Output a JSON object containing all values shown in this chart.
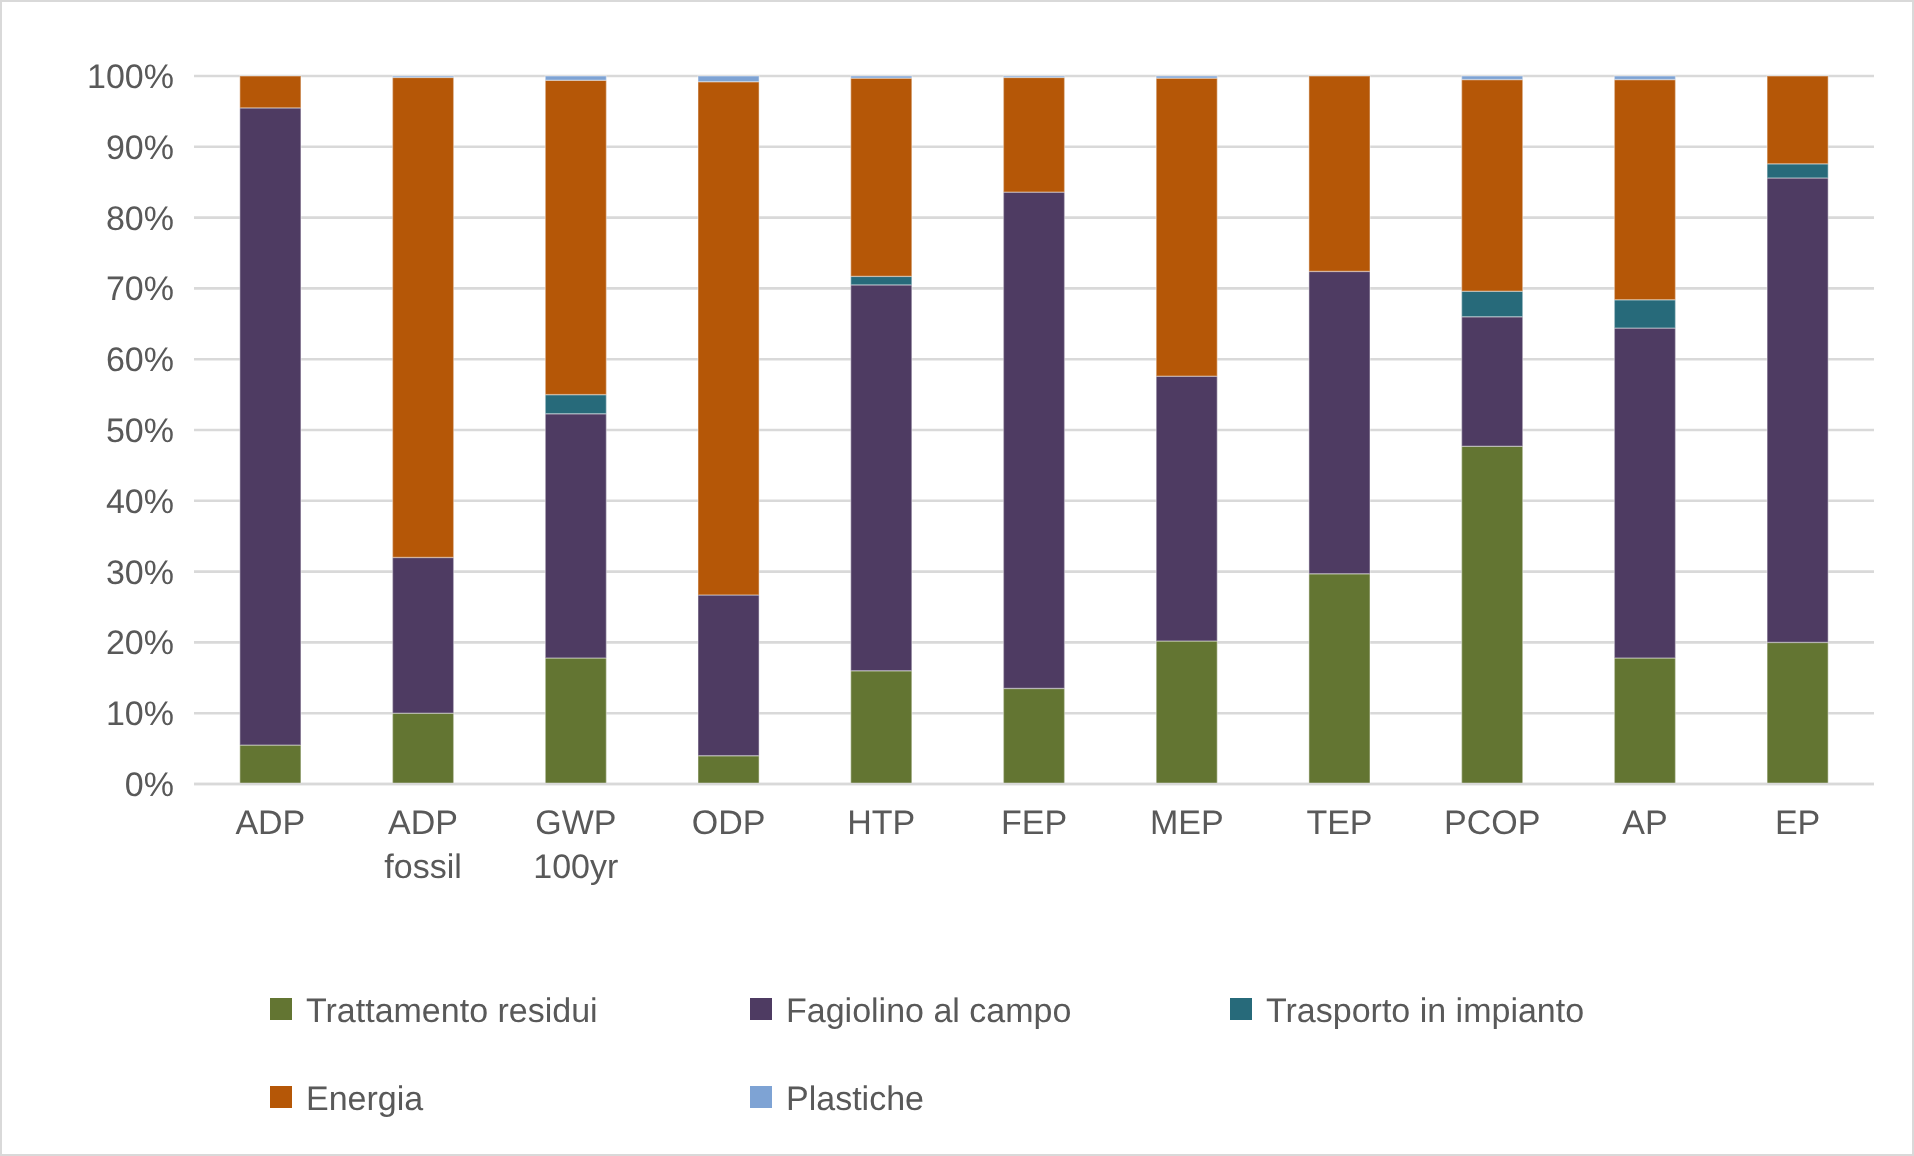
{
  "chart_data": {
    "type": "bar",
    "stacked": true,
    "categories": [
      "ADP",
      "ADP fossil",
      "GWP 100yr",
      "ODP",
      "HTP",
      "FEP",
      "MEP",
      "TEP",
      "PCOP",
      "AP",
      "EP"
    ],
    "series": [
      {
        "name": "Trattamento residui",
        "color": "#637532",
        "values": [
          5.5,
          10,
          17.8,
          4,
          16,
          13.5,
          20.2,
          29.7,
          47.7,
          17.8,
          20
        ]
      },
      {
        "name": "Fagiolino al campo",
        "color": "#4e3b62",
        "values": [
          90,
          22,
          34.5,
          22.7,
          54.5,
          70.1,
          37.4,
          42.7,
          18.3,
          46.6,
          65.6
        ]
      },
      {
        "name": "Trasporto in impianto",
        "color": "#276a7a",
        "values": [
          0,
          0,
          2.7,
          0,
          1.2,
          0,
          0,
          0,
          3.6,
          4,
          2
        ]
      },
      {
        "name": "Energia",
        "color": "#b55707",
        "values": [
          4.5,
          67.8,
          44.4,
          72.5,
          28,
          16.2,
          42.1,
          27.6,
          29.9,
          31.1,
          12.4
        ]
      },
      {
        "name": "Plastiche",
        "color": "#7ea3d4",
        "values": [
          0,
          0.2,
          0.6,
          0.8,
          0.3,
          0.2,
          0.3,
          0,
          0.5,
          0.5,
          0
        ]
      }
    ],
    "ylim": [
      0,
      100
    ],
    "yticks": [
      {
        "value": 0,
        "label": "0%"
      },
      {
        "value": 10,
        "label": "10%"
      },
      {
        "value": 20,
        "label": "20%"
      },
      {
        "value": 30,
        "label": "30%"
      },
      {
        "value": 40,
        "label": "40%"
      },
      {
        "value": 50,
        "label": "50%"
      },
      {
        "value": 60,
        "label": "60%"
      },
      {
        "value": 70,
        "label": "70%"
      },
      {
        "value": 80,
        "label": "80%"
      },
      {
        "value": 90,
        "label": "90%"
      },
      {
        "value": 100,
        "label": "100%"
      }
    ],
    "grid": "y",
    "legend": "bottom"
  }
}
